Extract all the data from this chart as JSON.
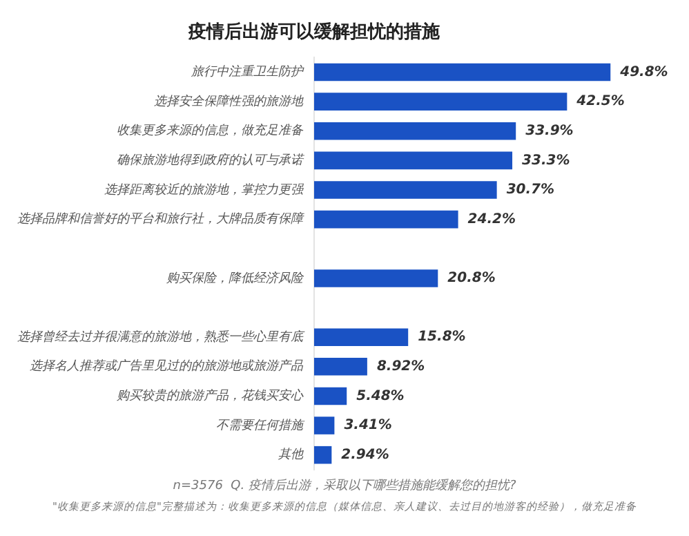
{
  "chart_data": {
    "type": "bar",
    "orientation": "horizontal",
    "title": "疫情后出游可以缓解担忧的措施",
    "categories": [
      "旅行中注重卫生防护",
      "选择安全保障性强的旅游地",
      "收集更多来源的信息，做充足准备",
      "确保旅游地得到政府的认可与承诺",
      "选择距离较近的旅游地，掌控力更强",
      "选择品牌和信誉好的平台和旅行社，大牌品质有保障",
      null,
      "购买保险，降低经济风险",
      null,
      "选择曾经去过并很满意的旅游地，熟悉一些心里有底",
      "选择名人推荐或广告里见过的的旅游地或旅游产品",
      "购买较贵的旅游产品，花钱买安心",
      "不需要任何措施",
      "其他"
    ],
    "values": [
      49.8,
      42.5,
      33.9,
      33.3,
      30.7,
      24.2,
      null,
      20.8,
      null,
      15.8,
      8.92,
      5.48,
      3.41,
      2.94
    ],
    "value_labels": [
      "49.8%",
      "42.5%",
      "33.9%",
      "33.3%",
      "30.7%",
      "24.2%",
      null,
      "20.8%",
      null,
      "15.8%",
      "8.92%",
      "5.48%",
      "3.41%",
      "2.94%"
    ],
    "color": "#1a52c4",
    "annotations": [
      "n=3576  Q. 疫情后出游，采取以下哪些措施能缓解您的担忧?",
      "\"收集更多来源的信息\"完整描述为：收集更多来源的信息（媒体信息、亲人建议、去过目的地游客的经验），做充足准备"
    ],
    "grid": false,
    "legend": false
  }
}
